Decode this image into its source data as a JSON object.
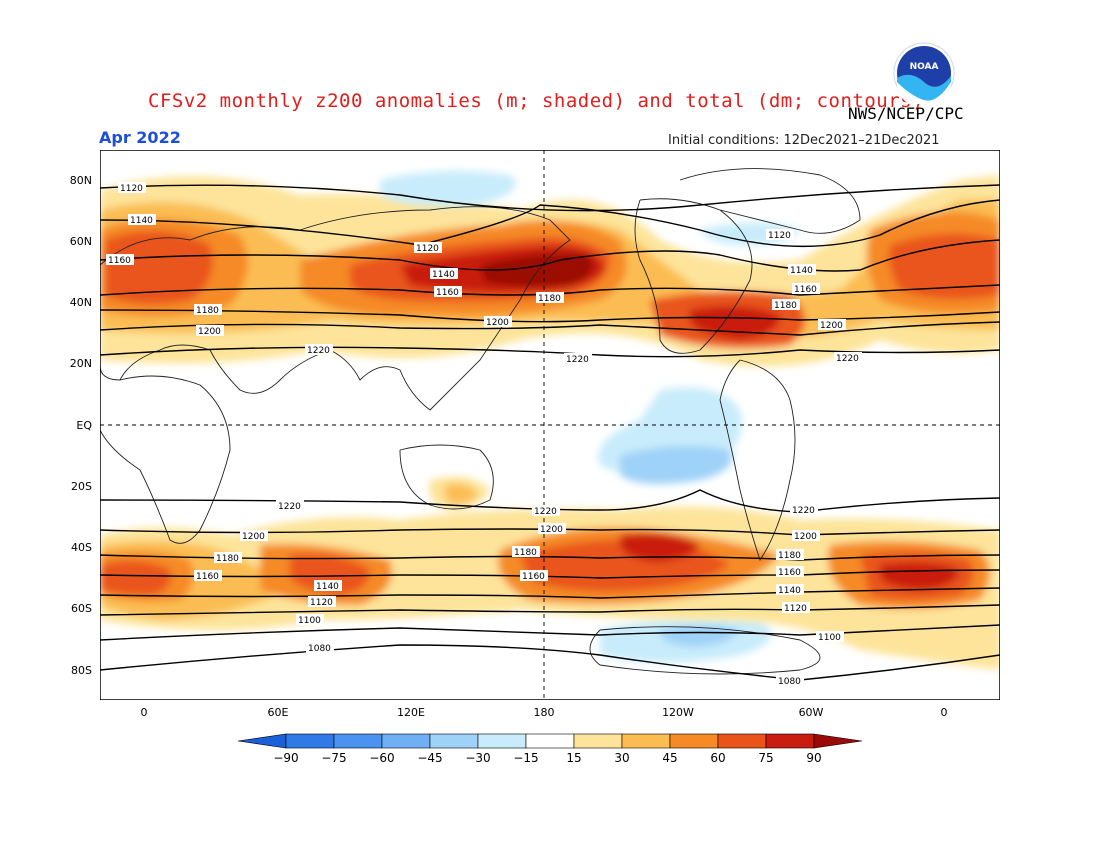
{
  "header": {
    "title": "CFSv2 monthly z200 anomalies (m; shaded) and total (dm; contours)",
    "agency": "NWS/NCEP/CPC",
    "month": "Apr 2022",
    "initial_conditions": "Initial conditions: 12Dec2021–21Dec2021",
    "logo_text": "NOAA"
  },
  "map": {
    "lat_labels": [
      "80N",
      "60N",
      "40N",
      "20N",
      "EQ",
      "20S",
      "40S",
      "60S",
      "80S"
    ],
    "lon_labels": [
      "0",
      "60E",
      "120E",
      "180",
      "120W",
      "60W",
      "0"
    ],
    "contour_labels": {
      "c1080": "1080",
      "c1100": "1100",
      "c1120": "1120",
      "c1140": "1140",
      "c1160": "1160",
      "c1180": "1180",
      "c1200": "1200",
      "c1220": "1220"
    }
  },
  "colorbar": {
    "ticks": [
      "−90",
      "−75",
      "−60",
      "−45",
      "−30",
      "−15",
      "15",
      "30",
      "45",
      "60",
      "75",
      "90"
    ],
    "colors": [
      "#1a60d8",
      "#2f7ae6",
      "#4a93ef",
      "#6fb0f4",
      "#9fd2f8",
      "#c8ecfb",
      "#ffffff",
      "#fde49a",
      "#fbbd52",
      "#f58a26",
      "#e9541a",
      "#c91d10",
      "#9a0a06"
    ]
  }
}
